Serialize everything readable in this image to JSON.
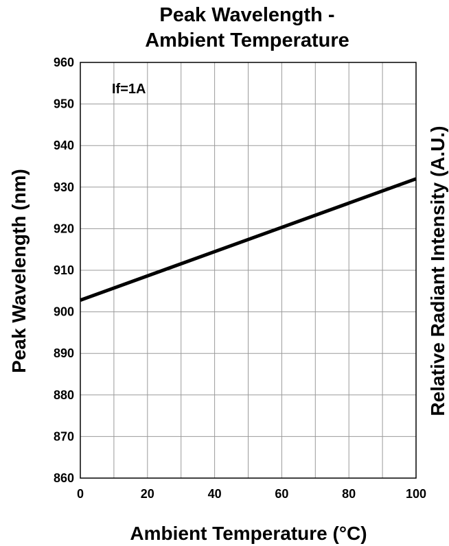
{
  "chart_data": {
    "type": "line",
    "title_lines": [
      "Peak Wavelength -",
      "Ambient Temperature"
    ],
    "xlabel": "Ambient Temperature (°C)",
    "ylabel": "Peak Wavelength (nm)",
    "ylabel_right": "Relative Radiant Intensity (A.U.)",
    "xlim": [
      0,
      100
    ],
    "ylim": [
      860,
      960
    ],
    "x_ticks": [
      0,
      20,
      40,
      60,
      80,
      100
    ],
    "y_ticks": [
      860,
      870,
      880,
      890,
      900,
      910,
      920,
      930,
      940,
      950,
      960
    ],
    "x_grid_step": 10,
    "y_grid_step": 10,
    "grid": true,
    "annotation": "If=1A",
    "series": [
      {
        "x": [
          0,
          100
        ],
        "y": [
          902.8,
          932
        ],
        "color": "#000000"
      }
    ]
  }
}
